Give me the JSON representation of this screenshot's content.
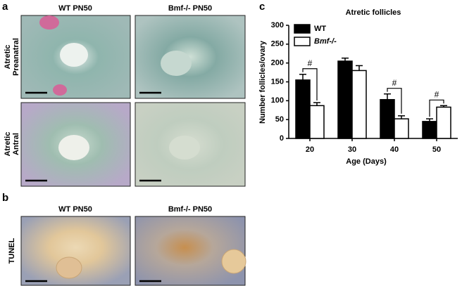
{
  "panel_labels": [
    "a",
    "b",
    "c"
  ],
  "panel_a": {
    "columns": [
      "WT PN50",
      "Bmf-/- PN50"
    ],
    "rows": [
      [
        "Atretic",
        "Preanatral"
      ],
      [
        "Atretic",
        "Antral"
      ]
    ]
  },
  "panel_b": {
    "columns": [
      "WT PN50",
      "Bmf-/- PN50"
    ],
    "rows": [
      "TUNEL"
    ]
  },
  "chart_data": {
    "type": "bar",
    "title": "Atretic follicles",
    "x_label": "Age (Days)",
    "y_label": "Number follicles/ovary",
    "categories": [
      "20",
      "30",
      "40",
      "50"
    ],
    "series": [
      {
        "name": "WT",
        "color": "#000000",
        "values": [
          155,
          205,
          103,
          45
        ],
        "errors": [
          15,
          8,
          15,
          7
        ]
      },
      {
        "name": "Bmf-/-",
        "color": "#ffffff",
        "values": [
          87,
          180,
          52,
          83
        ],
        "errors": [
          8,
          13,
          8,
          4
        ]
      }
    ],
    "annotations": [
      "#",
      "#",
      "#"
    ],
    "ylim": [
      0,
      300
    ],
    "yticks": [
      0,
      50,
      100,
      150,
      200,
      250,
      300
    ],
    "legend": "upper-left"
  }
}
